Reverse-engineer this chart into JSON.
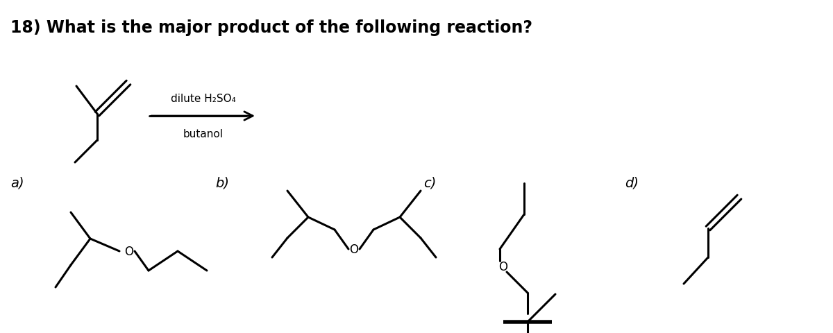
{
  "title": "18) What is the major product of the following reaction?",
  "title_fontsize": 17,
  "title_fontweight": "bold",
  "background_color": "#ffffff",
  "text_color": "#000000",
  "reagent_above": "dilute H₂SO₄",
  "reagent_below": "butanol",
  "labels": [
    "a)",
    "b)",
    "c)",
    "d)"
  ],
  "lw": 2.2
}
